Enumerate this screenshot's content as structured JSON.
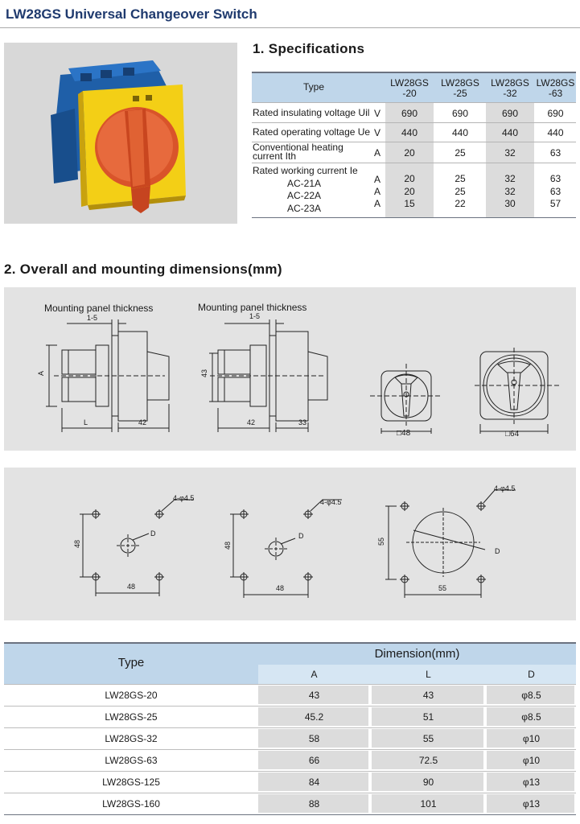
{
  "page_title": "LW28GS Universal Changeover Switch",
  "section1_title": "1. Specifications",
  "section2_title": "2. Overall and mounting dimensions(mm)",
  "specs": {
    "type_header": "Type",
    "models": [
      {
        "line1": "LW28GS",
        "line2": "-20"
      },
      {
        "line1": "LW28GS",
        "line2": "-25"
      },
      {
        "line1": "LW28GS",
        "line2": "-32"
      },
      {
        "line1": "LW28GS",
        "line2": "-63"
      }
    ],
    "rows": [
      {
        "label": "Rated insulating voltage Uil",
        "unit": "V",
        "values": [
          "690",
          "690",
          "690",
          "690"
        ]
      },
      {
        "label": "Rated operating voltage Ue",
        "unit": "V",
        "values": [
          "440",
          "440",
          "440",
          "440"
        ]
      },
      {
        "label_line1": "Conventional heating",
        "label_line2": "current Ith",
        "unit": "A",
        "values": [
          "20",
          "25",
          "32",
          "63"
        ]
      }
    ],
    "working_current_label": "Rated working current Ie",
    "working_rows": [
      {
        "category": "AC-21A",
        "unit": "A",
        "values": [
          "20",
          "25",
          "32",
          "63"
        ]
      },
      {
        "category": "AC-22A",
        "unit": "A",
        "values": [
          "20",
          "25",
          "32",
          "63"
        ]
      },
      {
        "category": "AC-23A",
        "unit": "A",
        "values": [
          "15",
          "22",
          "30",
          "57"
        ]
      }
    ]
  },
  "drawings": {
    "mounting_panel_thickness": "Mounting panel thickness",
    "panel_range": "1-5",
    "dim_A": "A",
    "dim_L": "L",
    "dim_42": "42",
    "dim_43": "43",
    "dim_33": "33",
    "front_48": "□48",
    "front_64": "□64",
    "hole_label": "4-φ4.5",
    "d_label": "D",
    "m48": "48",
    "m55": "55"
  },
  "dimension_table": {
    "type_header": "Type",
    "group_header": "Dimension(mm)",
    "columns": [
      "A",
      "L",
      "D"
    ],
    "rows": [
      {
        "type": "LW28GS-20",
        "A": "43",
        "L": "43",
        "D": "φ8.5"
      },
      {
        "type": "LW28GS-25",
        "A": "45.2",
        "L": "51",
        "D": "φ8.5"
      },
      {
        "type": "LW28GS-32",
        "A": "58",
        "L": "55",
        "D": "φ10"
      },
      {
        "type": "LW28GS-63",
        "A": "66",
        "L": "72.5",
        "D": "φ10"
      },
      {
        "type": "LW28GS-125",
        "A": "84",
        "L": "90",
        "D": "φ13"
      },
      {
        "type": "LW28GS-160",
        "A": "88",
        "L": "101",
        "D": "φ13"
      }
    ]
  }
}
